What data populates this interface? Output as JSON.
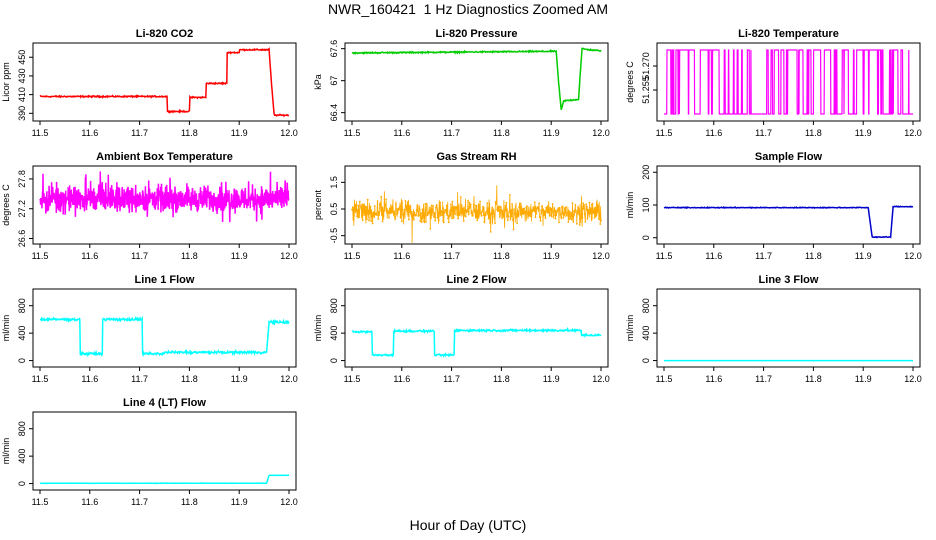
{
  "page": {
    "title": "NWR_160421  1 Hz Diagnostics Zoomed AM",
    "x_axis_label": "Hour of Day (UTC)"
  },
  "chart_data": [
    {
      "type": "line",
      "title": "Li-820 CO2",
      "ylabel": "Licor ppm",
      "color": "#ff0000",
      "xlim": [
        11.5,
        12.0
      ],
      "ylim": [
        385,
        462
      ],
      "yticks": [
        390,
        410,
        430,
        450
      ],
      "xticks": [
        11.5,
        11.6,
        11.7,
        11.8,
        11.9,
        12.0
      ],
      "x": [
        11.5,
        11.755,
        11.7551,
        11.8,
        11.8001,
        11.833,
        11.8331,
        11.875,
        11.8751,
        11.9,
        11.9001,
        11.96,
        11.965,
        11.97,
        11.9701,
        12.0
      ],
      "y": [
        408,
        408,
        392,
        392,
        407,
        407,
        422,
        422,
        455,
        455,
        458,
        458,
        420,
        389,
        388,
        388
      ],
      "noise": 0.6
    },
    {
      "type": "line",
      "title": "Li-820 Pressure",
      "ylabel": "kPa",
      "color": "#00cc00",
      "xlim": [
        11.5,
        12.0
      ],
      "ylim": [
        66.3,
        67.65
      ],
      "yticks": [
        66.4,
        67.0,
        67.6
      ],
      "xticks": [
        11.5,
        11.6,
        11.7,
        11.8,
        11.9,
        12.0
      ],
      "x": [
        11.5,
        11.91,
        11.915,
        11.92,
        11.925,
        11.955,
        11.958,
        11.962,
        11.975,
        12.0
      ],
      "y": [
        67.52,
        67.55,
        66.95,
        66.45,
        66.62,
        66.65,
        67.1,
        67.6,
        67.58,
        67.56
      ],
      "noise": 0.01
    },
    {
      "type": "line",
      "title": "Li-820 Temperature",
      "ylabel": "degrees C",
      "color": "#ff00ff",
      "xlim": [
        11.5,
        12.0
      ],
      "ylim": [
        51.2375,
        51.2825
      ],
      "yticks": [
        51.255,
        51.27
      ],
      "ytick_labels": [
        "51.255",
        "51.270"
      ],
      "xticks": [
        11.5,
        11.6,
        11.7,
        11.8,
        11.9,
        12.0
      ],
      "levels": [
        51.24,
        51.28
      ],
      "switches": 90
    },
    {
      "type": "line",
      "title": "Ambient Box Temperature",
      "ylabel": "degrees C",
      "color": "#ff00ff",
      "xlim": [
        11.5,
        12.0
      ],
      "ylim": [
        26.55,
        28.0
      ],
      "yticks": [
        26.6,
        27.2,
        27.8
      ],
      "xticks": [
        11.5,
        11.6,
        11.7,
        11.8,
        11.9,
        12.0
      ],
      "mean": 27.4,
      "noise": 0.22
    },
    {
      "type": "scatter",
      "title": "Gas Stream RH",
      "ylabel": "percent",
      "color": "#ffaa00",
      "xlim": [
        11.5,
        12.0
      ],
      "ylim": [
        -0.7,
        2.0
      ],
      "yticks": [
        -0.5,
        0.5,
        1.5
      ],
      "xticks": [
        11.5,
        11.6,
        11.7,
        11.8,
        11.9,
        12.0
      ],
      "mean": 0.4,
      "noise": 0.35
    },
    {
      "type": "line",
      "title": "Sample Flow",
      "ylabel": "ml/min",
      "color": "#0000cc",
      "xlim": [
        11.5,
        12.0
      ],
      "ylim": [
        -10,
        210
      ],
      "yticks": [
        0,
        100,
        200
      ],
      "xticks": [
        11.5,
        11.6,
        11.7,
        11.8,
        11.9,
        12.0
      ],
      "x": [
        11.5,
        11.91,
        11.918,
        11.955,
        11.96,
        12.0
      ],
      "y": [
        92,
        92,
        2,
        2,
        95,
        95
      ],
      "noise": 1.0
    },
    {
      "type": "line",
      "title": "Line 1 Flow",
      "ylabel": "ml/min",
      "color": "#00ffff",
      "xlim": [
        11.5,
        12.0
      ],
      "ylim": [
        -50,
        1000
      ],
      "yticks": [
        0,
        400,
        800
      ],
      "xticks": [
        11.5,
        11.6,
        11.7,
        11.8,
        11.9,
        12.0
      ],
      "x": [
        11.5,
        11.58,
        11.5801,
        11.625,
        11.6251,
        11.705,
        11.7051,
        11.75,
        11.7501,
        11.955,
        11.96,
        12.0
      ],
      "y": [
        600,
        600,
        100,
        100,
        600,
        600,
        100,
        100,
        120,
        120,
        560,
        560
      ],
      "noise": 15
    },
    {
      "type": "line",
      "title": "Line 2 Flow",
      "ylabel": "ml/min",
      "color": "#00ffff",
      "xlim": [
        11.5,
        12.0
      ],
      "ylim": [
        -50,
        1000
      ],
      "yticks": [
        0,
        400,
        800
      ],
      "xticks": [
        11.5,
        11.6,
        11.7,
        11.8,
        11.9,
        12.0
      ],
      "x": [
        11.5,
        11.54,
        11.5401,
        11.583,
        11.5831,
        11.665,
        11.6651,
        11.705,
        11.7051,
        11.96,
        11.9601,
        12.0
      ],
      "y": [
        420,
        420,
        80,
        80,
        430,
        430,
        80,
        80,
        440,
        440,
        370,
        370
      ],
      "noise": 12
    },
    {
      "type": "line",
      "title": "Line 3 Flow",
      "ylabel": "ml/min",
      "color": "#00ffff",
      "xlim": [
        11.5,
        12.0
      ],
      "ylim": [
        -50,
        1000
      ],
      "yticks": [
        0,
        400,
        800
      ],
      "xticks": [
        11.5,
        11.6,
        11.7,
        11.8,
        11.9,
        12.0
      ],
      "x": [
        11.5,
        12.0
      ],
      "y": [
        0,
        0
      ],
      "noise": 0
    },
    {
      "type": "line",
      "title": "Line 4 (LT) Flow",
      "ylabel": "ml/min",
      "color": "#00ffff",
      "xlim": [
        11.5,
        12.0
      ],
      "ylim": [
        -50,
        1000
      ],
      "yticks": [
        0,
        400,
        800
      ],
      "xticks": [
        11.5,
        11.6,
        11.7,
        11.8,
        11.9,
        12.0
      ],
      "x": [
        11.5,
        11.955,
        11.96,
        12.0
      ],
      "y": [
        5,
        5,
        120,
        120
      ],
      "noise": 2
    }
  ]
}
